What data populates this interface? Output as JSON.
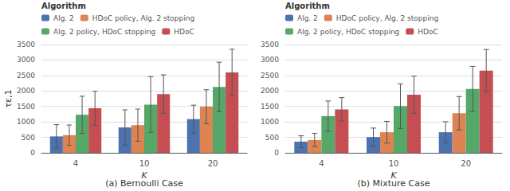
{
  "chart_data": [
    {
      "type": "bar",
      "subtitle": "(a) Bernoulli Case",
      "categories": [
        "4",
        "10",
        "20"
      ],
      "xlabel": "K",
      "ylabel": "τε,1",
      "ylim": [
        0,
        3500
      ],
      "yticks": [
        0,
        500,
        1000,
        1500,
        2000,
        2500,
        3000,
        3500
      ],
      "grid": true,
      "legend": "upper left",
      "legend_title": "Algorithm",
      "series": [
        {
          "name": "Alg. 2",
          "color": "#4C72B0",
          "values": [
            530,
            820,
            1090
          ],
          "errors": [
            380,
            570,
            450
          ]
        },
        {
          "name": "HDoC policy, Alg. 2 stopping",
          "color": "#DD8452",
          "values": [
            570,
            895,
            1490
          ],
          "errors": [
            330,
            520,
            550
          ]
        },
        {
          "name": "Alg. 2 policy, HDoC stopping",
          "color": "#55A868",
          "values": [
            1230,
            1560,
            2130
          ],
          "errors": [
            600,
            900,
            800
          ]
        },
        {
          "name": "HDoC",
          "color": "#C44E52",
          "values": [
            1440,
            1900,
            2600
          ],
          "errors": [
            550,
            620,
            750
          ]
        }
      ]
    },
    {
      "type": "bar",
      "subtitle": "(b) Mixture Case",
      "categories": [
        "4",
        "10",
        "20"
      ],
      "xlabel": "K",
      "ylim": [
        0,
        3500
      ],
      "yticks": [
        0,
        500,
        1000,
        1500,
        2000,
        2500,
        3000,
        3500
      ],
      "grid": true,
      "legend": "upper left",
      "legend_title": "Algorithm",
      "series": [
        {
          "name": "Alg. 2",
          "color": "#4C72B0",
          "values": [
            360,
            510,
            665
          ],
          "errors": [
            190,
            290,
            340
          ]
        },
        {
          "name": "HDoC policy, Alg. 2 stopping",
          "color": "#DD8452",
          "values": [
            415,
            665,
            1280
          ],
          "errors": [
            215,
            350,
            540
          ]
        },
        {
          "name": "Alg. 2 policy, HDoC stopping",
          "color": "#55A868",
          "values": [
            1185,
            1510,
            2065
          ],
          "errors": [
            490,
            720,
            730
          ]
        },
        {
          "name": "HDoC",
          "color": "#C44E52",
          "values": [
            1405,
            1880,
            2660
          ],
          "errors": [
            380,
            600,
            680
          ]
        }
      ]
    }
  ]
}
